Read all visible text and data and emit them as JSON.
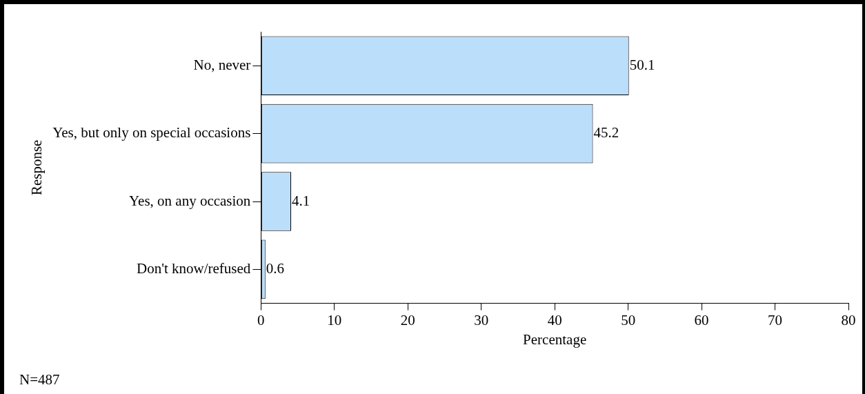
{
  "chart_data": {
    "type": "bar",
    "orientation": "horizontal",
    "xlabel": "Percentage",
    "ylabel": "Response",
    "categories": [
      "No, never",
      "Yes, but only on special occasions",
      "Yes, on any occasion",
      "Don't know/refused"
    ],
    "values": [
      50.1,
      45.2,
      4.1,
      0.6
    ],
    "color": "#bbdefb",
    "xlim": [
      0,
      80
    ],
    "xticks": [
      0,
      10,
      20,
      30,
      40,
      50,
      60,
      70,
      80
    ],
    "grid": false,
    "legend": false,
    "data_labels": true,
    "annotations": [
      "N=487"
    ]
  }
}
